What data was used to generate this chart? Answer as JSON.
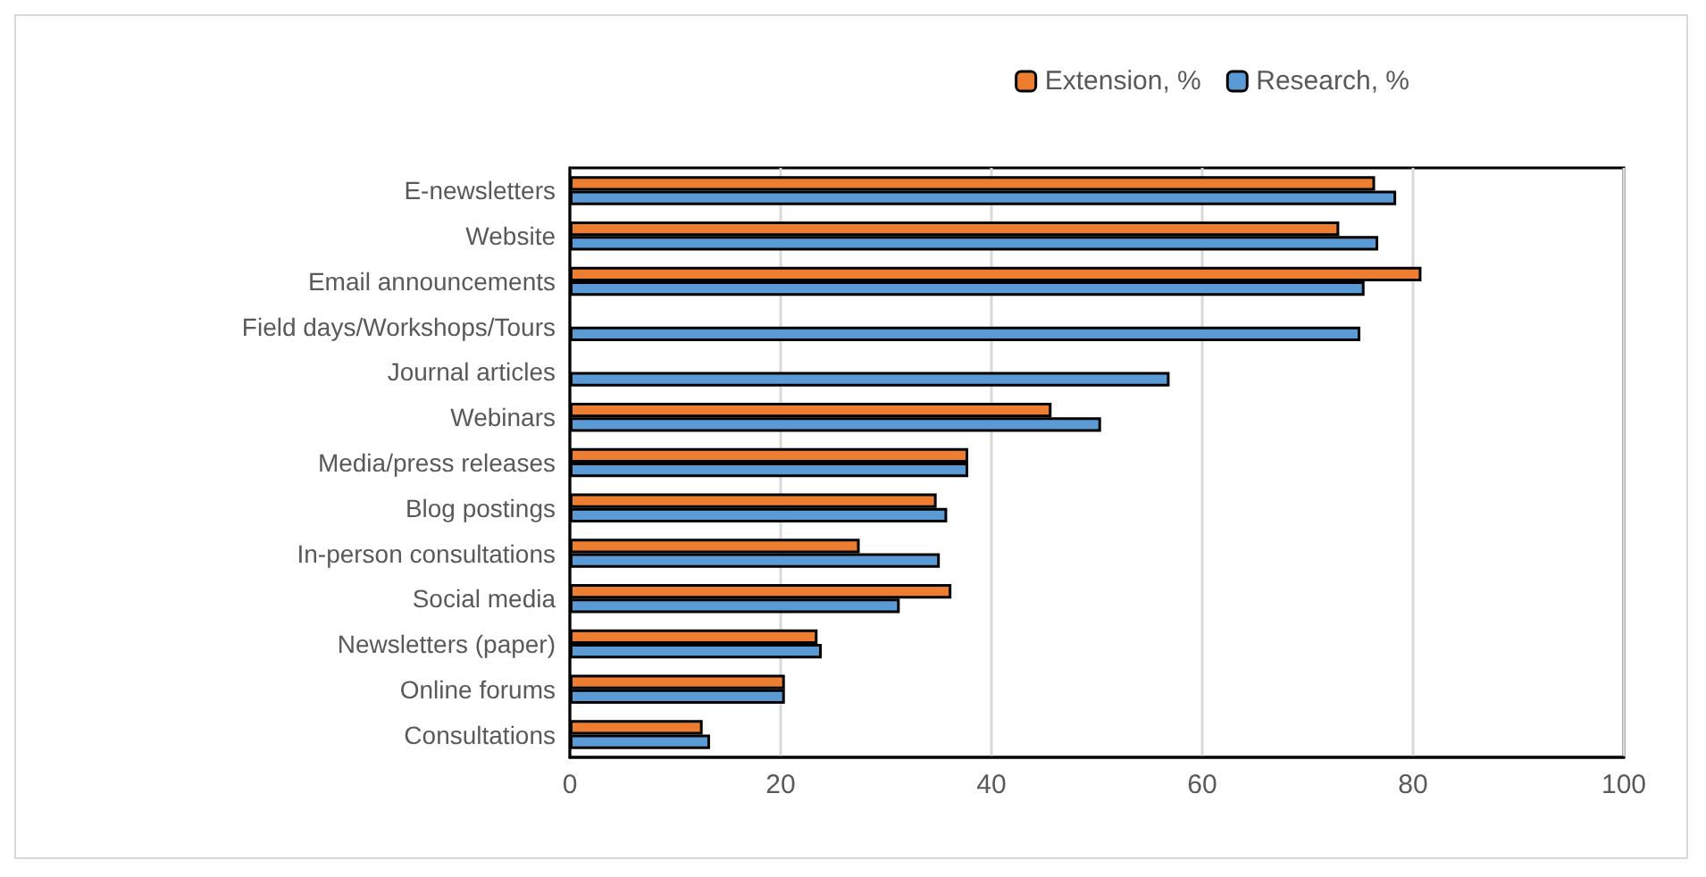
{
  "chart_data": {
    "type": "bar",
    "orientation": "horizontal",
    "categories": [
      "E-newsletters",
      "Website",
      "Email announcements",
      "Field days/Workshops/Tours",
      "Journal articles",
      "Webinars",
      "Media/press releases",
      "Blog postings",
      "In-person consultations",
      "Social media",
      "Newsletters (paper)",
      "Online forums",
      "Consultations"
    ],
    "series": [
      {
        "name": "Extension, %",
        "color": "#ed7d31",
        "values": [
          76.4,
          73.0,
          80.8,
          null,
          null,
          45.7,
          37.8,
          34.8,
          27.5,
          36.2,
          23.5,
          20.4,
          12.6
        ]
      },
      {
        "name": "Research, %",
        "color": "#5b9bd5",
        "values": [
          78.4,
          76.7,
          75.4,
          75.0,
          56.9,
          50.4,
          37.8,
          35.8,
          35.1,
          31.3,
          23.9,
          20.4,
          13.3
        ]
      }
    ],
    "xlim": [
      0,
      100
    ],
    "xticks": [
      0,
      20,
      40,
      60,
      80,
      100
    ],
    "grid": "x",
    "legend": "top right"
  }
}
